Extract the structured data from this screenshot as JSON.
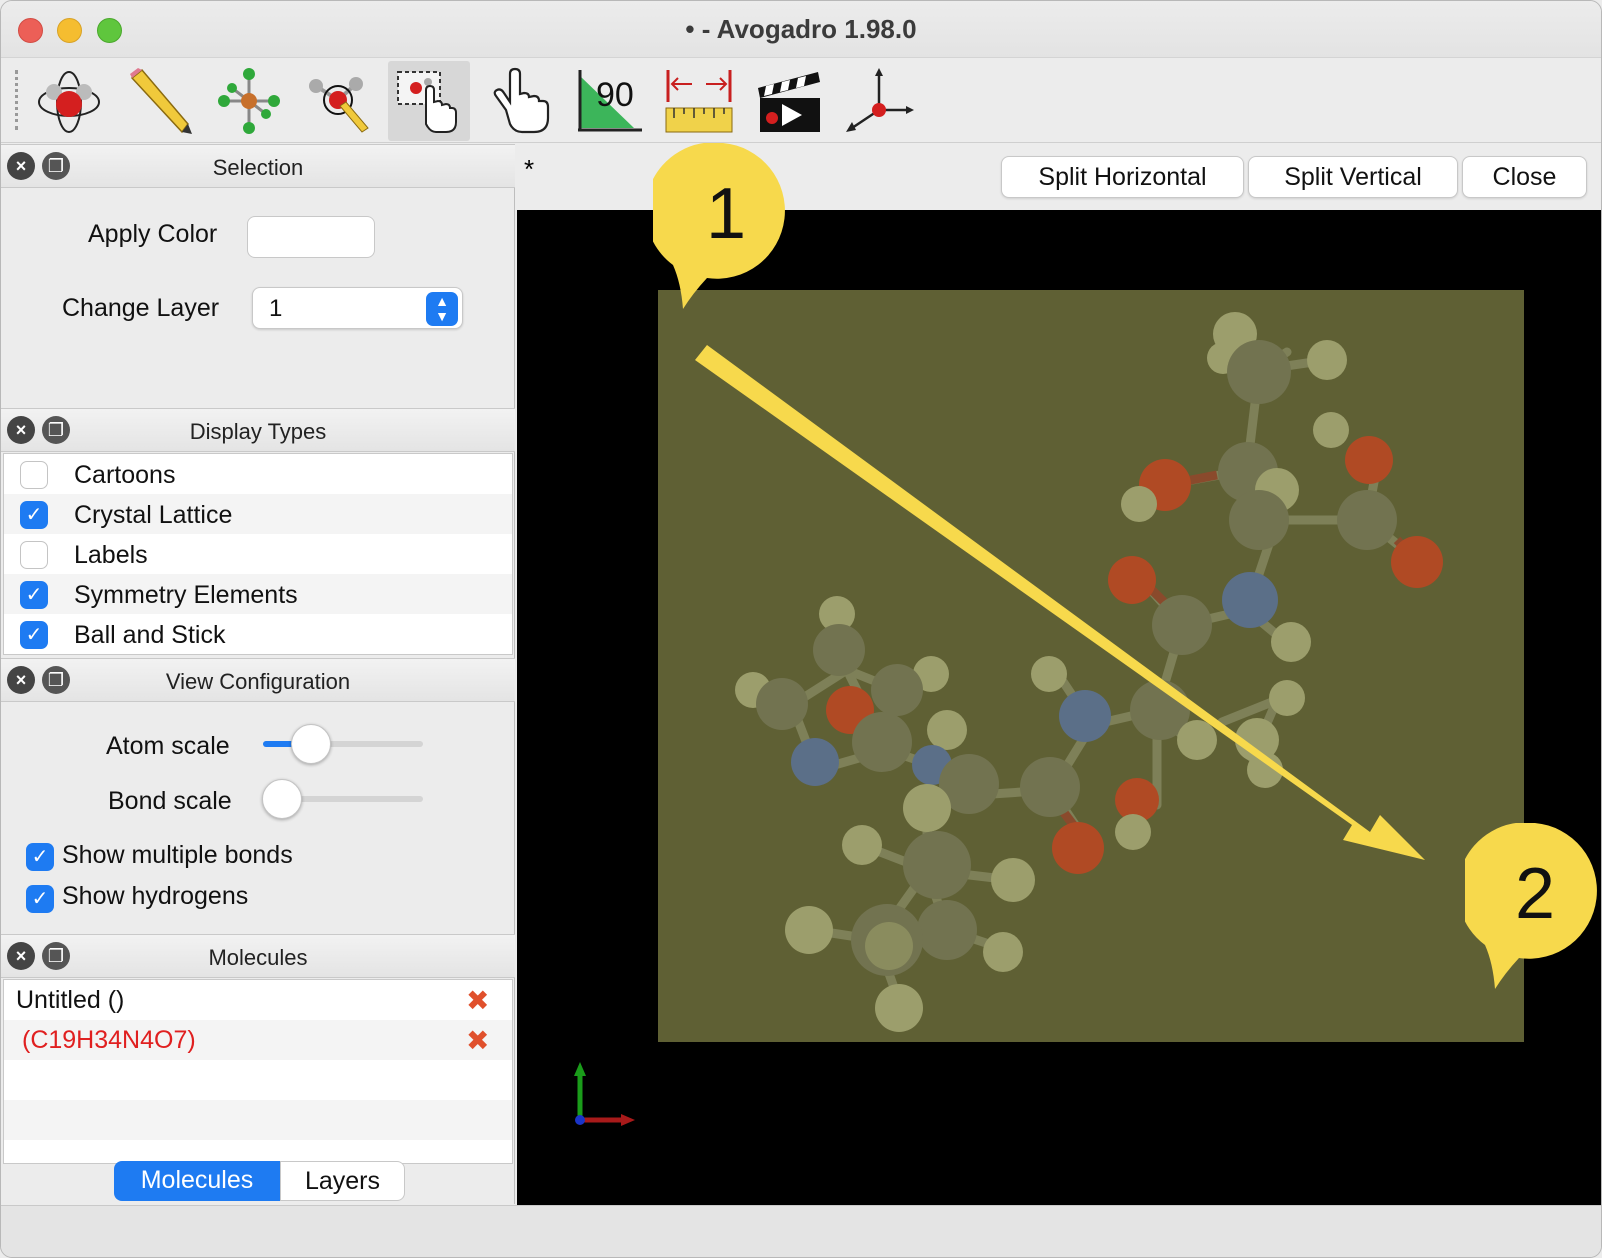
{
  "window": {
    "title": "• - Avogadro 1.98.0"
  },
  "toolbar": {
    "tools": [
      {
        "name": "navigate-tool",
        "icon": "navigate-icon"
      },
      {
        "name": "draw-tool",
        "icon": "pencil-icon"
      },
      {
        "name": "template-tool",
        "icon": "template-icon"
      },
      {
        "name": "bond-centric-tool",
        "icon": "bond-centric-icon"
      },
      {
        "name": "selection-tool",
        "icon": "selection-icon",
        "active": true
      },
      {
        "name": "manipulate-tool",
        "icon": "hand-icon"
      },
      {
        "name": "measure-tool",
        "icon": "angle-icon",
        "label": "90"
      },
      {
        "name": "ruler-tool",
        "icon": "ruler-icon"
      },
      {
        "name": "animation-tool",
        "icon": "clapperboard-icon"
      },
      {
        "name": "align-tool",
        "icon": "axes-icon"
      }
    ]
  },
  "selection_panel": {
    "title": "Selection",
    "apply_color_label": "Apply Color",
    "change_layer_label": "Change Layer",
    "layer_value": "1"
  },
  "display_types": {
    "title": "Display Types",
    "items": [
      {
        "label": "Cartoons",
        "checked": false
      },
      {
        "label": "Crystal Lattice",
        "checked": true
      },
      {
        "label": "Labels",
        "checked": false
      },
      {
        "label": "Symmetry Elements",
        "checked": true
      },
      {
        "label": "Ball and Stick",
        "checked": true
      }
    ]
  },
  "view_config": {
    "title": "View Configuration",
    "atom_scale_label": "Atom scale",
    "atom_scale_value": 0.3,
    "bond_scale_label": "Bond scale",
    "bond_scale_value": 0.0,
    "show_multiple_bonds": "Show multiple bonds",
    "show_hydrogens": "Show hydrogens"
  },
  "molecules_panel": {
    "title": "Molecules",
    "items": [
      {
        "label": "Untitled ()",
        "color": "#111111"
      },
      {
        "label": "(C19H34N4O7)",
        "color": "#e02020"
      }
    ],
    "tabs": [
      "Molecules",
      "Layers"
    ],
    "active_tab": "Molecules"
  },
  "view_header": {
    "tab_marker": "*",
    "split_horizontal": "Split Horizontal",
    "split_vertical": "Split Vertical",
    "close": "Close"
  },
  "annotations": {
    "callout1": "1",
    "callout2": "2"
  },
  "colors": {
    "accent": "#1e7bf2",
    "selection_overlay": "#5f6034",
    "callout": "#f7d94c",
    "oxygen": "#b04a24",
    "nitrogen": "#5b6f88",
    "carbon": "#727350",
    "hydrogen": "#9c9e6c"
  }
}
